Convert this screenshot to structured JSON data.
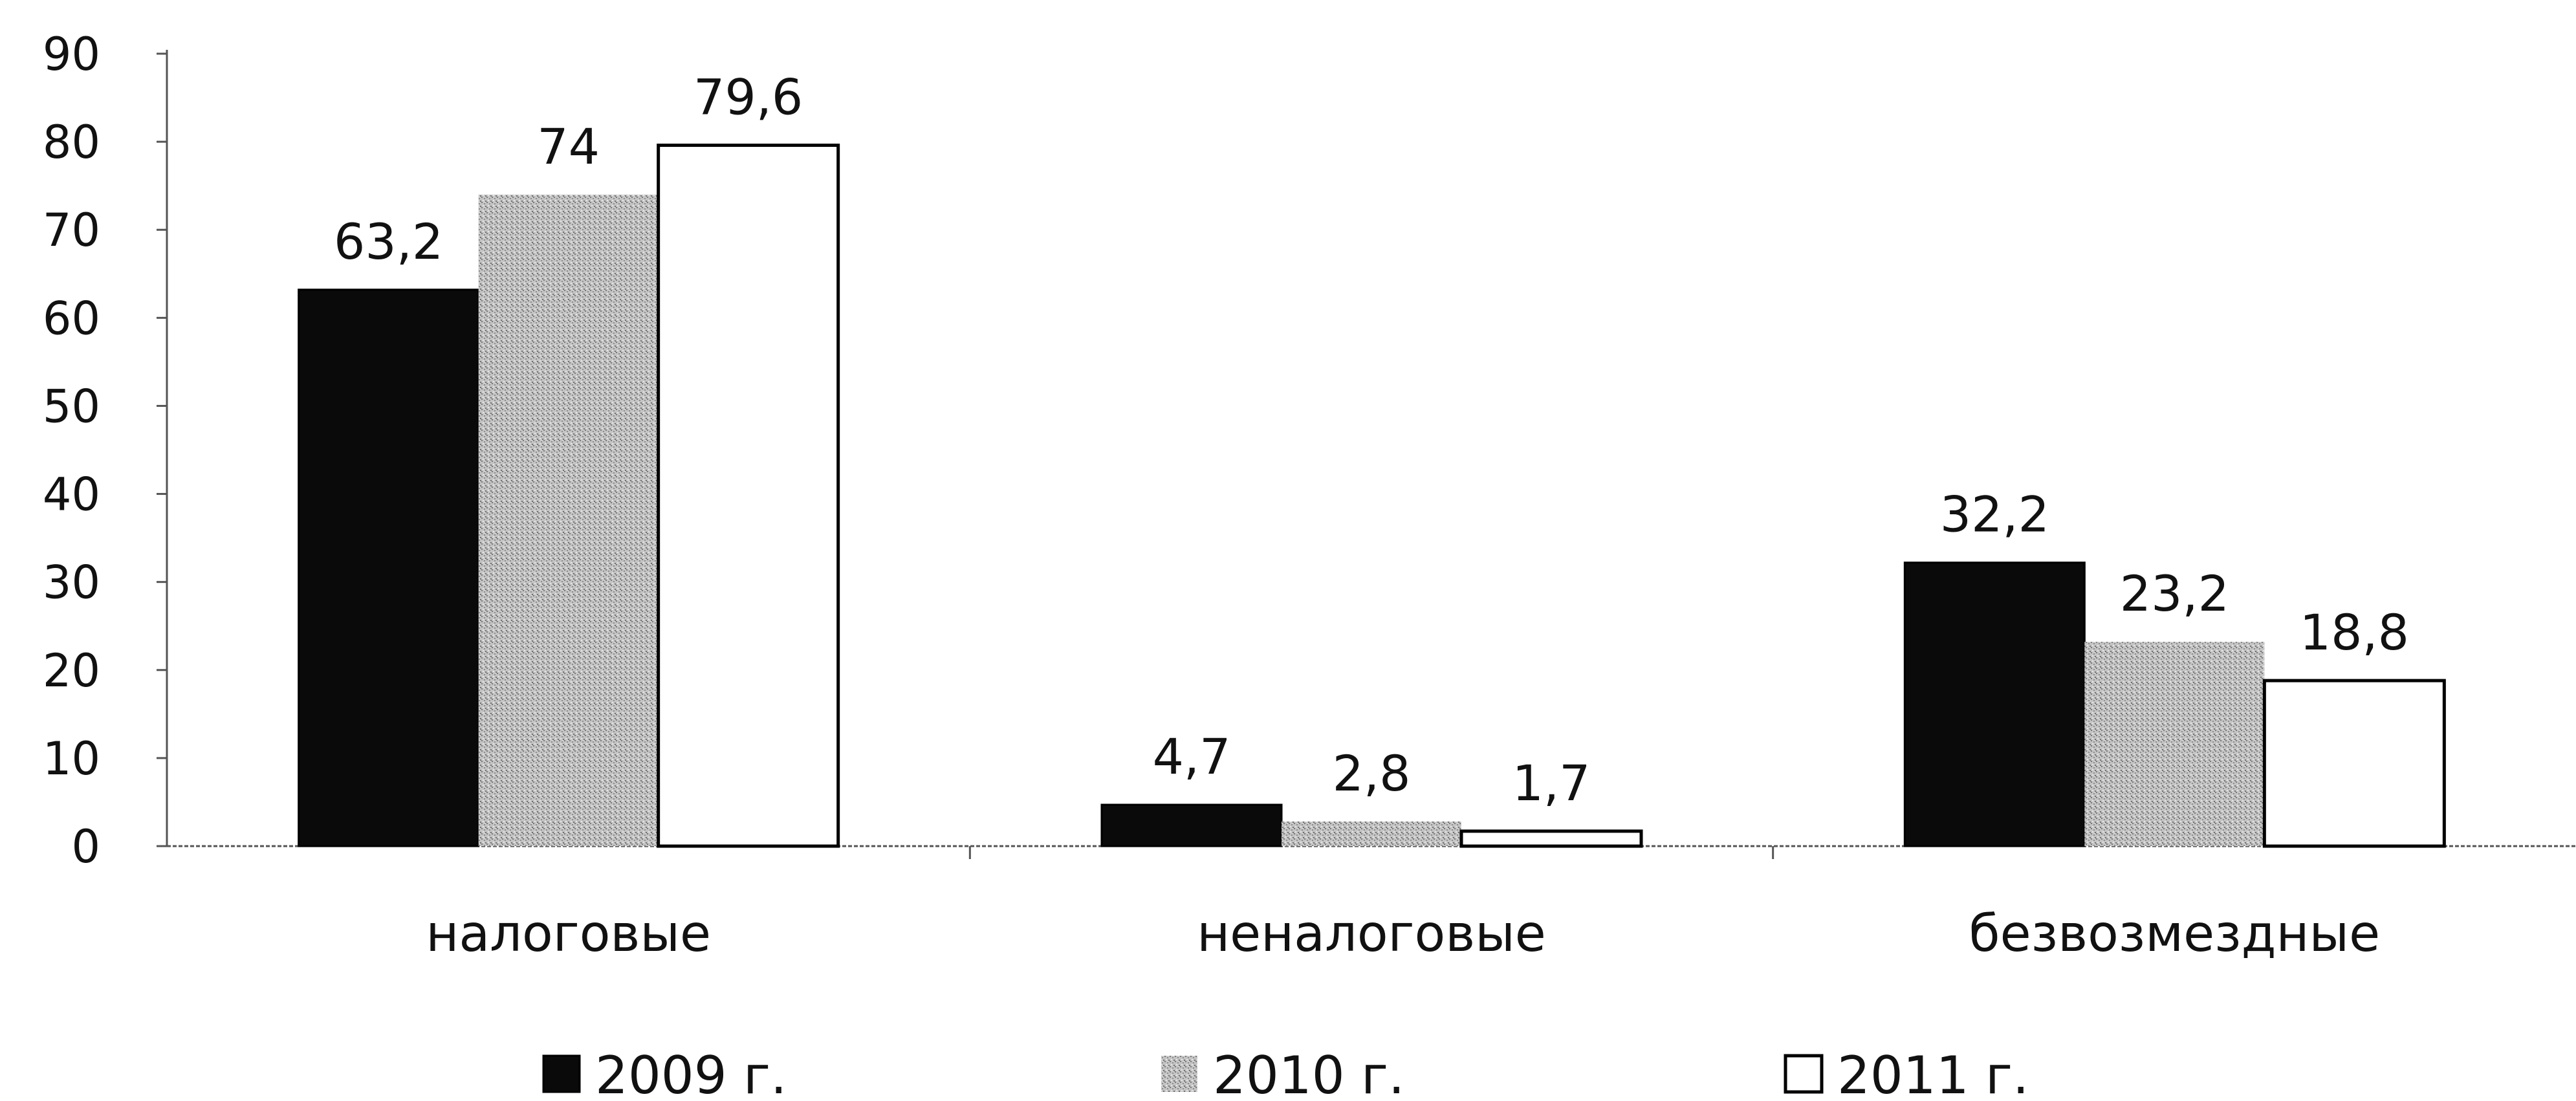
{
  "chart_data": {
    "type": "bar",
    "title": "",
    "xlabel": "",
    "ylabel": "",
    "categories": [
      "налоговые",
      "неналоговые",
      "безвозмездные"
    ],
    "series": [
      {
        "name": "2009 г.",
        "values": [
          63.2,
          4.7,
          32.2
        ],
        "labels": [
          "63,2",
          "4,7",
          "32,2"
        ],
        "color": "#0a0a0a"
      },
      {
        "name": "2010 г.",
        "values": [
          74,
          2.8,
          23.2
        ],
        "labels": [
          "74",
          "2,8",
          "23,2"
        ],
        "color": "#bdbdbd"
      },
      {
        "name": "2011 г.",
        "values": [
          79.6,
          1.7,
          18.8
        ],
        "labels": [
          "79,6",
          "1,7",
          "18,8"
        ],
        "color": "#ffffff"
      }
    ],
    "ylim": [
      0,
      90
    ],
    "yticks": [
      0,
      10,
      20,
      30,
      40,
      50,
      60,
      70,
      80,
      90
    ],
    "grid": false,
    "legend": "bottom"
  }
}
